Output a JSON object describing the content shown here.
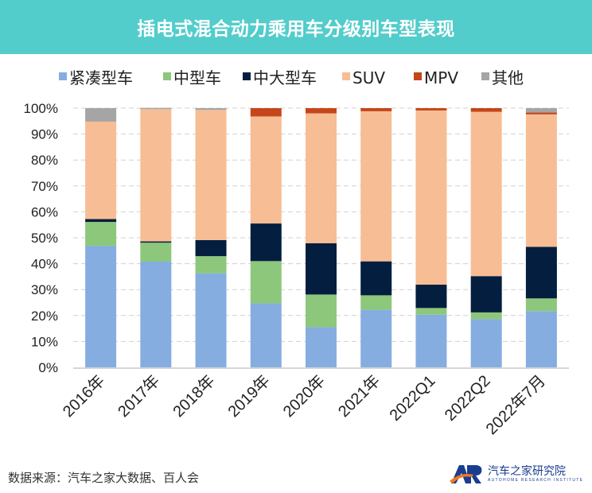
{
  "header": {
    "title": "插电式混合动力乘用车分级别车型表现"
  },
  "footer": {
    "source": "数据来源：汽车之家大数据、百人会",
    "logo_cn": "汽车之家研究院",
    "logo_en": "AUTOHOME RESEARCH INSTITUTE",
    "logo_mark": "AR"
  },
  "chart_data": {
    "type": "bar",
    "stacked": true,
    "title": "插电式混合动力乘用车分级别车型表现",
    "categories": [
      "2016年",
      "2017年",
      "2018年",
      "2019年",
      "2020年",
      "2021年",
      "2022Q1",
      "2022Q2",
      "2022年7月"
    ],
    "ylim": [
      0,
      100
    ],
    "yticks": [
      "0%",
      "10%",
      "20%",
      "30%",
      "40%",
      "50%",
      "60%",
      "70%",
      "80%",
      "90%",
      "100%"
    ],
    "grid": true,
    "legend": "top",
    "series": [
      {
        "name": "紧凑型车",
        "color": "#86ADE0",
        "values": [
          46.9,
          40.8,
          36.3,
          24.7,
          15.5,
          22.2,
          20.3,
          18.6,
          21.7
        ]
      },
      {
        "name": "中型车",
        "color": "#8DC77B",
        "values": [
          9.2,
          7.3,
          6.6,
          16.3,
          12.6,
          5.6,
          2.6,
          2.6,
          4.9
        ]
      },
      {
        "name": "中大型车",
        "color": "#031E3E",
        "values": [
          1.1,
          0.5,
          6.2,
          14.5,
          19.8,
          13.1,
          9.0,
          14.0,
          19.9
        ]
      },
      {
        "name": "SUV",
        "color": "#F7BD94",
        "values": [
          37.6,
          51.0,
          50.2,
          41.3,
          50.1,
          57.9,
          67.2,
          63.4,
          51.1
        ]
      },
      {
        "name": "MPV",
        "color": "#C4461A",
        "values": [
          0,
          0,
          0,
          3.2,
          2.0,
          1.2,
          0.9,
          1.4,
          0.7
        ]
      },
      {
        "name": "其他",
        "color": "#A5A5A5",
        "values": [
          5.2,
          0.5,
          0.7,
          0,
          0,
          0,
          0,
          0,
          1.7
        ]
      }
    ]
  }
}
